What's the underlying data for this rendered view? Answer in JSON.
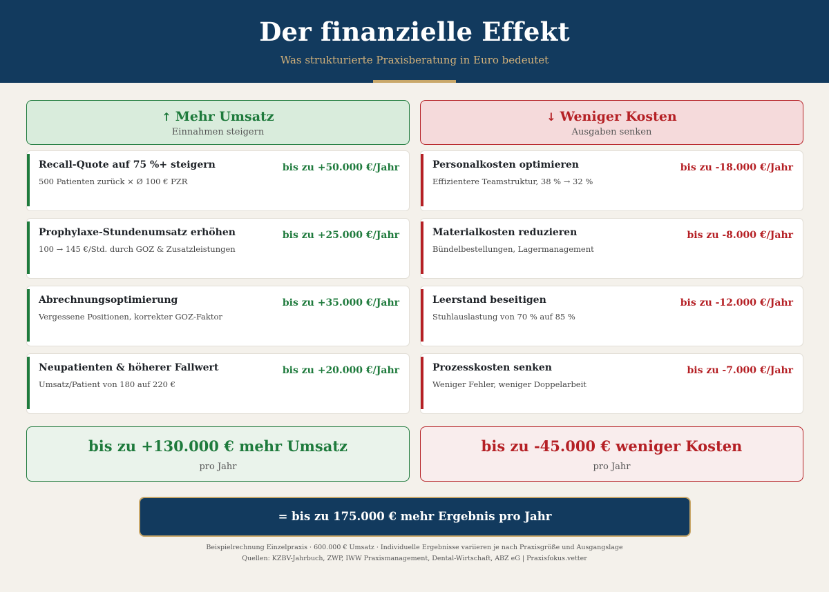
{
  "header": {
    "title": "Der finanzielle Effekt",
    "subtitle": "Was strukturierte Praxisberatung in Euro bedeutet"
  },
  "colors": {
    "navy": "#123a5e",
    "gold": "#c9a86a",
    "green": "#1e7a3c",
    "red": "#b52025",
    "background": "#f4f1eb"
  },
  "revenue": {
    "icon": "arrow-up-icon",
    "arrow": "↑",
    "title": "Mehr Umsatz",
    "subtitle": "Einnahmen steigern",
    "items": [
      {
        "title": "Recall-Quote auf 75 %+ steigern",
        "desc": "500 Patienten zurück × Ø 100 € PZR",
        "value": "bis zu +50.000 €/Jahr"
      },
      {
        "title": "Prophylaxe-Stundenumsatz erhöhen",
        "desc": "100 → 145 €/Std. durch GOZ & Zusatzleistungen",
        "value": "bis zu +25.000 €/Jahr"
      },
      {
        "title": "Abrechnungsoptimierung",
        "desc": "Vergessene Positionen, korrekter GOZ-Faktor",
        "value": "bis zu +35.000 €/Jahr"
      },
      {
        "title": "Neupatienten & höherer Fallwert",
        "desc": "Umsatz/Patient von 180 auf 220 €",
        "value": "bis zu +20.000 €/Jahr"
      }
    ],
    "total": "bis zu +130.000 € mehr Umsatz",
    "total_sub": "pro Jahr"
  },
  "costs": {
    "icon": "arrow-down-icon",
    "arrow": "↓",
    "title": "Weniger Kosten",
    "subtitle": "Ausgaben senken",
    "items": [
      {
        "title": "Personalkosten optimieren",
        "desc": "Effizientere Teamstruktur, 38 % → 32 %",
        "value": "bis zu -18.000 €/Jahr"
      },
      {
        "title": "Materialkosten reduzieren",
        "desc": "Bündelbestellungen, Lagermanagement",
        "value": "bis zu -8.000 €/Jahr"
      },
      {
        "title": "Leerstand beseitigen",
        "desc": "Stuhlauslastung von 70 % auf 85 %",
        "value": "bis zu -12.000 €/Jahr"
      },
      {
        "title": "Prozesskosten senken",
        "desc": "Weniger Fehler, weniger Doppelarbeit",
        "value": "bis zu -7.000 €/Jahr"
      }
    ],
    "total": "bis zu -45.000 € weniger Kosten",
    "total_sub": "pro Jahr"
  },
  "result": "= bis zu 175.000 € mehr Ergebnis pro Jahr",
  "footnote": {
    "line1": "Beispielrechnung Einzelpraxis · 600.000 € Umsatz · Individuelle Ergebnisse variieren je nach Praxisgröße und Ausgangslage",
    "line2": "Quellen: KZBV-Jahrbuch, ZWP, IWW Praxismanagement, Dental-Wirtschaft, ABZ eG | Praxisfokus.vetter"
  }
}
